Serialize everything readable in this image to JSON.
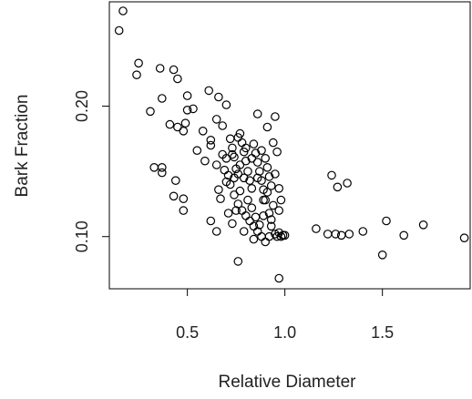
{
  "chart_data": {
    "type": "scatter",
    "xlabel": "Relative Diameter",
    "ylabel": "Bark Fraction",
    "xlim": [
      0.1,
      1.95
    ],
    "ylim": [
      0.06,
      0.28
    ],
    "x_ticks": [
      0.5,
      1.0,
      1.5
    ],
    "x_tick_labels": [
      "0.5",
      "1.0",
      "1.5"
    ],
    "y_ticks": [
      0.1,
      0.2
    ],
    "y_tick_labels": [
      "0.10",
      "0.20"
    ],
    "grid": false,
    "legend": "none",
    "marker": "open-circle",
    "colors": {
      "points": "#000000",
      "axes": "#000000",
      "background": "#ffffff"
    },
    "points": [
      [
        0.17,
        0.273
      ],
      [
        0.15,
        0.258
      ],
      [
        0.25,
        0.233
      ],
      [
        0.24,
        0.224
      ],
      [
        0.36,
        0.229
      ],
      [
        0.43,
        0.228
      ],
      [
        0.45,
        0.221
      ],
      [
        0.31,
        0.196
      ],
      [
        0.37,
        0.206
      ],
      [
        0.5,
        0.208
      ],
      [
        0.61,
        0.212
      ],
      [
        0.53,
        0.198
      ],
      [
        0.5,
        0.197
      ],
      [
        0.41,
        0.186
      ],
      [
        0.45,
        0.184
      ],
      [
        0.48,
        0.181
      ],
      [
        0.49,
        0.187
      ],
      [
        0.58,
        0.181
      ],
      [
        0.62,
        0.174
      ],
      [
        0.65,
        0.19
      ],
      [
        0.66,
        0.207
      ],
      [
        0.7,
        0.201
      ],
      [
        0.68,
        0.185
      ],
      [
        0.33,
        0.153
      ],
      [
        0.37,
        0.153
      ],
      [
        0.37,
        0.149
      ],
      [
        0.44,
        0.143
      ],
      [
        0.43,
        0.131
      ],
      [
        0.48,
        0.129
      ],
      [
        0.48,
        0.12
      ],
      [
        0.55,
        0.166
      ],
      [
        0.59,
        0.158
      ],
      [
        0.62,
        0.17
      ],
      [
        0.65,
        0.155
      ],
      [
        0.66,
        0.136
      ],
      [
        0.62,
        0.112
      ],
      [
        0.65,
        0.104
      ],
      [
        0.7,
        0.16
      ],
      [
        0.72,
        0.175
      ],
      [
        0.73,
        0.168
      ],
      [
        0.74,
        0.161
      ],
      [
        0.75,
        0.152
      ],
      [
        0.76,
        0.148
      ],
      [
        0.77,
        0.179
      ],
      [
        0.78,
        0.172
      ],
      [
        0.79,
        0.165
      ],
      [
        0.8,
        0.158
      ],
      [
        0.81,
        0.15
      ],
      [
        0.82,
        0.143
      ],
      [
        0.83,
        0.137
      ],
      [
        0.84,
        0.171
      ],
      [
        0.85,
        0.164
      ],
      [
        0.86,
        0.157
      ],
      [
        0.87,
        0.15
      ],
      [
        0.88,
        0.143
      ],
      [
        0.89,
        0.136
      ],
      [
        0.9,
        0.16
      ],
      [
        0.91,
        0.153
      ],
      [
        0.92,
        0.146
      ],
      [
        0.93,
        0.139
      ],
      [
        0.72,
        0.14
      ],
      [
        0.74,
        0.132
      ],
      [
        0.76,
        0.125
      ],
      [
        0.78,
        0.12
      ],
      [
        0.8,
        0.116
      ],
      [
        0.82,
        0.112
      ],
      [
        0.84,
        0.108
      ],
      [
        0.86,
        0.104
      ],
      [
        0.88,
        0.1
      ],
      [
        0.9,
        0.096
      ],
      [
        0.92,
        0.118
      ],
      [
        0.94,
        0.124
      ],
      [
        0.71,
        0.147
      ],
      [
        0.73,
        0.11
      ],
      [
        0.75,
        0.12
      ],
      [
        0.77,
        0.135
      ],
      [
        0.79,
        0.145
      ],
      [
        0.81,
        0.128
      ],
      [
        0.83,
        0.122
      ],
      [
        0.85,
        0.115
      ],
      [
        0.87,
        0.109
      ],
      [
        0.89,
        0.128
      ],
      [
        0.91,
        0.134
      ],
      [
        0.93,
        0.113
      ],
      [
        0.95,
        0.102
      ],
      [
        0.96,
        0.1
      ],
      [
        0.97,
        0.103
      ],
      [
        0.98,
        0.1
      ],
      [
        0.99,
        0.101
      ],
      [
        1.0,
        0.101
      ],
      [
        0.86,
        0.194
      ],
      [
        0.91,
        0.184
      ],
      [
        0.95,
        0.192
      ],
      [
        0.94,
        0.172
      ],
      [
        0.96,
        0.165
      ],
      [
        0.95,
        0.148
      ],
      [
        0.97,
        0.137
      ],
      [
        0.98,
        0.128
      ],
      [
        0.97,
        0.12
      ],
      [
        0.93,
        0.108
      ],
      [
        0.76,
        0.081
      ],
      [
        0.97,
        0.068
      ],
      [
        0.68,
        0.163
      ],
      [
        0.69,
        0.151
      ],
      [
        0.7,
        0.142
      ],
      [
        0.67,
        0.129
      ],
      [
        0.71,
        0.118
      ],
      [
        0.74,
        0.145
      ],
      [
        0.77,
        0.155
      ],
      [
        0.8,
        0.168
      ],
      [
        0.83,
        0.16
      ],
      [
        0.86,
        0.145
      ],
      [
        0.88,
        0.166
      ],
      [
        0.9,
        0.128
      ],
      [
        0.92,
        0.1
      ],
      [
        0.89,
        0.116
      ],
      [
        0.84,
        0.098
      ],
      [
        0.79,
        0.104
      ],
      [
        0.73,
        0.163
      ],
      [
        0.76,
        0.176
      ],
      [
        1.16,
        0.106
      ],
      [
        1.22,
        0.102
      ],
      [
        1.24,
        0.147
      ],
      [
        1.26,
        0.102
      ],
      [
        1.27,
        0.138
      ],
      [
        1.29,
        0.101
      ],
      [
        1.32,
        0.141
      ],
      [
        1.33,
        0.102
      ],
      [
        1.4,
        0.104
      ],
      [
        1.5,
        0.086
      ],
      [
        1.52,
        0.112
      ],
      [
        1.61,
        0.101
      ],
      [
        1.71,
        0.109
      ],
      [
        1.92,
        0.099
      ]
    ]
  }
}
